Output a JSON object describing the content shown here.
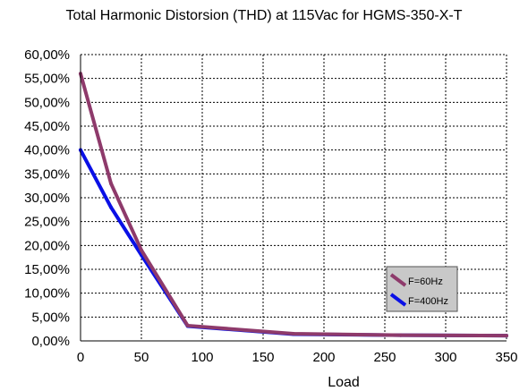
{
  "chart_data": {
    "type": "line",
    "title": "Total Harmonic Distorsion (THD) at 115Vac for HGMS-350-X-T",
    "xlabel": "Load",
    "ylabel": "",
    "xlim": [
      0,
      350
    ],
    "ylim": [
      0,
      60
    ],
    "x_ticks": [
      "0",
      "50",
      "100",
      "150",
      "200",
      "250",
      "300",
      "350"
    ],
    "y_ticks": [
      "0,00%",
      "5,00%",
      "10,00%",
      "15,00%",
      "20,00%",
      "25,00%",
      "30,00%",
      "35,00%",
      "40,00%",
      "45,00%",
      "50,00%",
      "55,00%",
      "60,00%"
    ],
    "grid": true,
    "legend_position": "right",
    "series": [
      {
        "name": "F=60Hz",
        "color": "#8e3a6b",
        "x": [
          0,
          25,
          50,
          88,
          175,
          263,
          350
        ],
        "y": [
          56,
          33,
          19,
          3.2,
          1.5,
          1.2,
          1.1
        ]
      },
      {
        "name": "F=400Hz",
        "color": "#0a10e6",
        "x": [
          0,
          25,
          50,
          88,
          175,
          263,
          350
        ],
        "y": [
          40,
          28,
          18,
          3.1,
          1.4,
          1.2,
          1.1
        ]
      }
    ]
  }
}
